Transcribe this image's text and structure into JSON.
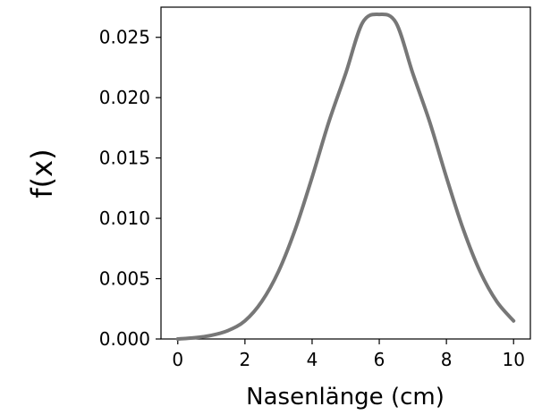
{
  "chart_data": {
    "type": "line",
    "title": "",
    "xlabel": "Nasenlänge (cm)",
    "ylabel": "f(x)",
    "xlim": [
      -0.5,
      10.5
    ],
    "ylim": [
      0,
      0.0275
    ],
    "x_ticks": [
      0,
      2,
      4,
      6,
      8,
      10
    ],
    "x_tick_labels": [
      "0",
      "2",
      "4",
      "6",
      "8",
      "10"
    ],
    "y_ticks": [
      0,
      0.005,
      0.01,
      0.015,
      0.02,
      0.025
    ],
    "y_tick_labels": [
      "0.000",
      "0.005",
      "0.010",
      "0.015",
      "0.020",
      "0.025"
    ],
    "grid": false,
    "series": [
      {
        "color": "#777777",
        "x": [
          0,
          0.5,
          1,
          1.5,
          2,
          2.5,
          3,
          3.5,
          4,
          4.5,
          5,
          5.5,
          6,
          6.5,
          7,
          7.5,
          8,
          8.5,
          9,
          9.5,
          10
        ],
        "y": [
          0.0,
          0.0001,
          0.0003,
          0.0007,
          0.0015,
          0.0031,
          0.0056,
          0.0091,
          0.0134,
          0.018,
          0.022,
          0.0262,
          0.0269,
          0.0262,
          0.022,
          0.018,
          0.0134,
          0.0091,
          0.0056,
          0.0031,
          0.0015
        ]
      }
    ]
  }
}
